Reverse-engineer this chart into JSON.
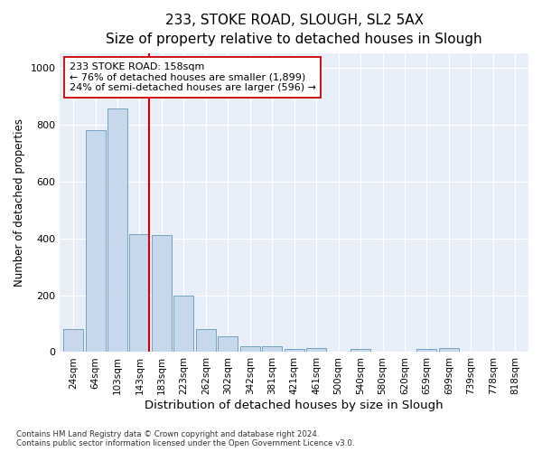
{
  "title1": "233, STOKE ROAD, SLOUGH, SL2 5AX",
  "title2": "Size of property relative to detached houses in Slough",
  "xlabel": "Distribution of detached houses by size in Slough",
  "ylabel": "Number of detached properties",
  "footnote1": "Contains HM Land Registry data © Crown copyright and database right 2024.",
  "footnote2": "Contains public sector information licensed under the Open Government Licence v3.0.",
  "annotation_line1": "233 STOKE ROAD: 158sqm",
  "annotation_line2": "← 76% of detached houses are smaller (1,899)",
  "annotation_line3": "24% of semi-detached houses are larger (596) →",
  "bin_labels": [
    "24sqm",
    "64sqm",
    "103sqm",
    "143sqm",
    "183sqm",
    "223sqm",
    "262sqm",
    "302sqm",
    "342sqm",
    "381sqm",
    "421sqm",
    "461sqm",
    "500sqm",
    "540sqm",
    "580sqm",
    "620sqm",
    "659sqm",
    "699sqm",
    "739sqm",
    "778sqm",
    "818sqm"
  ],
  "bar_values": [
    80,
    780,
    855,
    415,
    410,
    200,
    80,
    55,
    20,
    20,
    10,
    15,
    0,
    10,
    0,
    0,
    10,
    15,
    0,
    0,
    0
  ],
  "bar_color": "#c8d8ec",
  "bar_edge_color": "#6699bb",
  "vline_color": "#cc0000",
  "ylim": [
    0,
    1050
  ],
  "yticks": [
    0,
    200,
    400,
    600,
    800,
    1000
  ],
  "plot_bg_color": "#e8eef8",
  "annotation_box_color": "#ffffff",
  "annotation_box_edge": "#cc0000",
  "title1_fontsize": 11,
  "title2_fontsize": 10,
  "xlabel_fontsize": 9.5,
  "ylabel_fontsize": 8.5,
  "annotation_fontsize": 8,
  "grid_color": "#ffffff",
  "tick_fontsize": 7.5,
  "ytick_fontsize": 8
}
